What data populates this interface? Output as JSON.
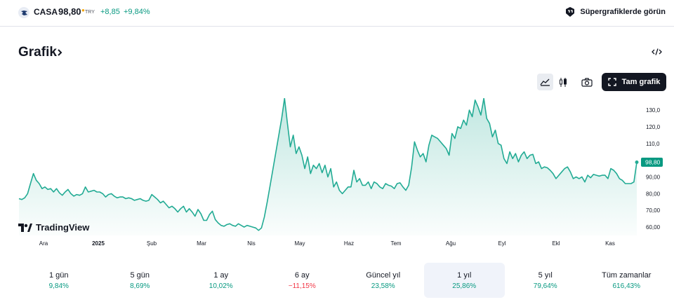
{
  "header": {
    "symbol": "CASA",
    "price": "98,80",
    "currency": "TRY",
    "change": "+8,85",
    "change_percent": "+9,84%",
    "supercharts_label": "Süpergrafiklerde görün"
  },
  "section": {
    "title": "Grafik"
  },
  "toolbar": {
    "full_chart_label": "Tam grafik"
  },
  "watermark": "TradingView",
  "colors": {
    "line": "#22ab94",
    "positive": "#089981",
    "negative": "#f23645",
    "last_price_bg": "#089981"
  },
  "periods": [
    {
      "label": "1 gün",
      "value": "9,84%",
      "dir": "pos",
      "selected": false
    },
    {
      "label": "5 gün",
      "value": "8,69%",
      "dir": "pos",
      "selected": false
    },
    {
      "label": "1 ay",
      "value": "10,02%",
      "dir": "pos",
      "selected": false
    },
    {
      "label": "6 ay",
      "value": "−11,15%",
      "dir": "neg",
      "selected": false
    },
    {
      "label": "Güncel yıl",
      "value": "23,58%",
      "dir": "pos",
      "selected": false
    },
    {
      "label": "1 yıl",
      "value": "25,86%",
      "dir": "pos",
      "selected": true
    },
    {
      "label": "5 yıl",
      "value": "79,64%",
      "dir": "pos",
      "selected": false
    },
    {
      "label": "Tüm zamanlar",
      "value": "616,43%",
      "dir": "pos",
      "selected": false
    }
  ],
  "chart_data": {
    "type": "area",
    "x_tick_labels": [
      "Ara",
      "2025",
      "Şub",
      "Mar",
      "Nis",
      "May",
      "Haz",
      "Tem",
      "Ağu",
      "Eyl",
      "Ekl",
      "Kas"
    ],
    "y_tick_labels": [
      "130,0",
      "120,0",
      "110,0",
      "100,0",
      "90,00",
      "80,00",
      "70,00",
      "60,00"
    ],
    "ylim": [
      55,
      138
    ],
    "last_price_label": "98,80",
    "series": [
      {
        "values": [
          77,
          76.5,
          77.5,
          80,
          86,
          92,
          88,
          86,
          83,
          84,
          82.5,
          83,
          81,
          83,
          80.5,
          79,
          81,
          82.5,
          80,
          78.5,
          79.5,
          79,
          80,
          84,
          81,
          81.5,
          82,
          81,
          81,
          80,
          78,
          79.5,
          80,
          78.5,
          77.5,
          78,
          78,
          77,
          77.5,
          77,
          76,
          76.5,
          77,
          76,
          75.5,
          76,
          79.5,
          78,
          76.5,
          74.5,
          75.5,
          73.5,
          71.5,
          72.5,
          71,
          69,
          71,
          72.5,
          69,
          71,
          69,
          66.5,
          70.5,
          68,
          64,
          64,
          67.5,
          69.5,
          64.5,
          62.5,
          61,
          60.5,
          61.5,
          62,
          61,
          60.5,
          62,
          61,
          60,
          61,
          60.5,
          60,
          59.5,
          58,
          59.5,
          66,
          75,
          85,
          95,
          105,
          115,
          125,
          137,
          122,
          108,
          115,
          104,
          108,
          103,
          95,
          102,
          92,
          97,
          95,
          98,
          92.5,
          97,
          90,
          95,
          84,
          87,
          82,
          80,
          82,
          84,
          84,
          94,
          87,
          89,
          85,
          85,
          87,
          83,
          87,
          86,
          84,
          83,
          86,
          85,
          84.5,
          83,
          86,
          86.5,
          84,
          82,
          85,
          96,
          111,
          106,
          102,
          104,
          99,
          109,
          115,
          114,
          113,
          111,
          109,
          107,
          103,
          116,
          113,
          120,
          119,
          124,
          121,
          130,
          126,
          136,
          132,
          127,
          137,
          125,
          122,
          114,
          118,
          110,
          109,
          101,
          98,
          105,
          101,
          104,
          99,
          103,
          105,
          101,
          103,
          103.5,
          98,
          99,
          95,
          96,
          95.5,
          94,
          92,
          89,
          91,
          93,
          95,
          96,
          93,
          89,
          90,
          89,
          90,
          87,
          91,
          89.5,
          91.5,
          91,
          90.5,
          91,
          91,
          89,
          95,
          94,
          92,
          89,
          88,
          86,
          86,
          86,
          87,
          98.8
        ]
      }
    ]
  }
}
